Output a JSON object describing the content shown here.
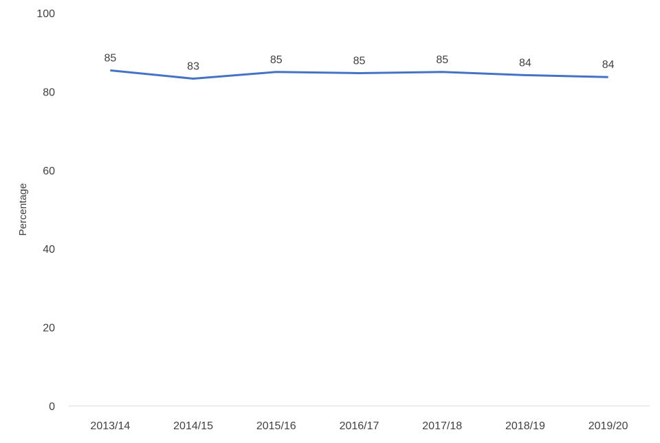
{
  "chart_data": {
    "type": "line",
    "title": "",
    "xlabel": "",
    "ylabel": "Percentage",
    "categories": [
      "2013/14",
      "2014/15",
      "2015/16",
      "2016/17",
      "2017/18",
      "2018/19",
      "2019/20"
    ],
    "series": [
      {
        "values": [
          85.4,
          83.3,
          85.0,
          84.7,
          85.0,
          84.2,
          83.7
        ],
        "data_labels": [
          "85",
          "83",
          "85",
          "85",
          "85",
          "84",
          "84"
        ],
        "color": "#4472C4"
      }
    ],
    "ylim": [
      0,
      100
    ],
    "yticks": [
      "0",
      "20",
      "40",
      "60",
      "80",
      "100"
    ],
    "grid": false,
    "legend": "none"
  }
}
